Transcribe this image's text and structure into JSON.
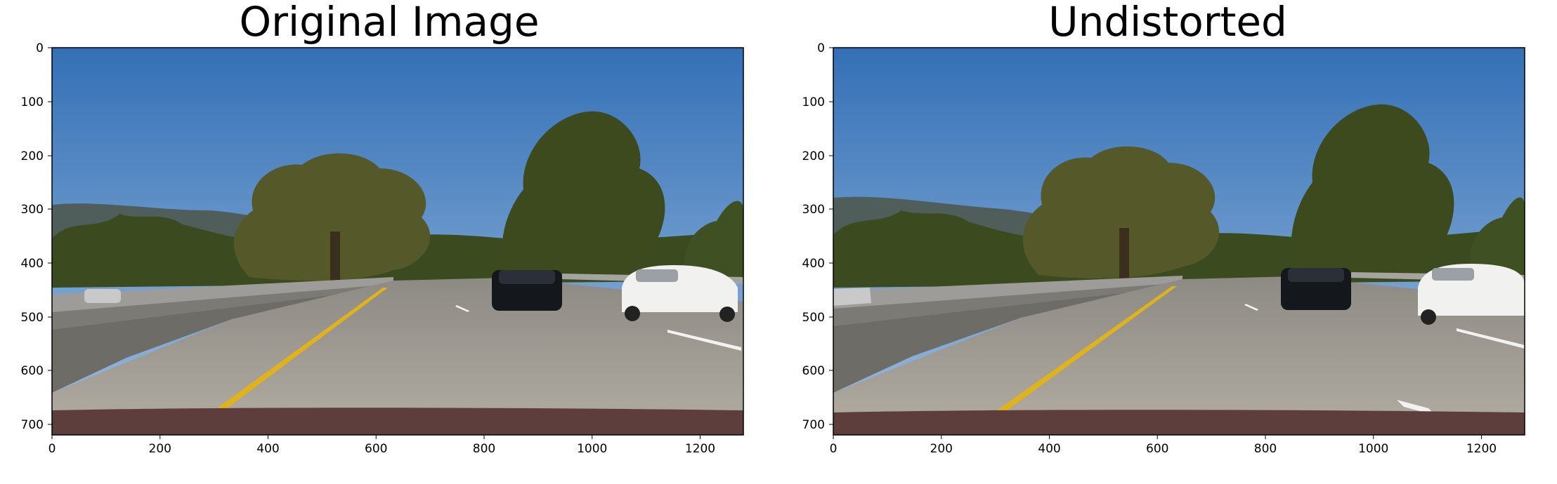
{
  "panels": [
    {
      "id": "original",
      "title": "Original Image",
      "x_ticks": [
        "0",
        "200",
        "400",
        "600",
        "800",
        "1000",
        "1200"
      ],
      "y_ticks": [
        "0",
        "100",
        "200",
        "300",
        "400",
        "500",
        "600",
        "700"
      ],
      "image_extent": {
        "width": 1280,
        "height": 720
      },
      "scene": "highway road scene with trees, blue sky, two parked-lane cars (black sedan and white sedan), concrete barrier on left, yellow lane line"
    },
    {
      "id": "undistorted",
      "title": "Undistorted",
      "x_ticks": [
        "0",
        "200",
        "400",
        "600",
        "800",
        "1000",
        "1200"
      ],
      "y_ticks": [
        "0",
        "100",
        "200",
        "300",
        "400",
        "500",
        "600",
        "700"
      ],
      "image_extent": {
        "width": 1280,
        "height": 720
      },
      "scene": "same highway road scene after lens distortion correction"
    }
  ],
  "colors": {
    "sky_top": "#3a73b8",
    "sky_bottom": "#8fb3d9",
    "road": "#a29d94",
    "yellow_line": "#e2b21a",
    "tree_dark": "#3f4a22",
    "hood": "#5a3a3a"
  }
}
